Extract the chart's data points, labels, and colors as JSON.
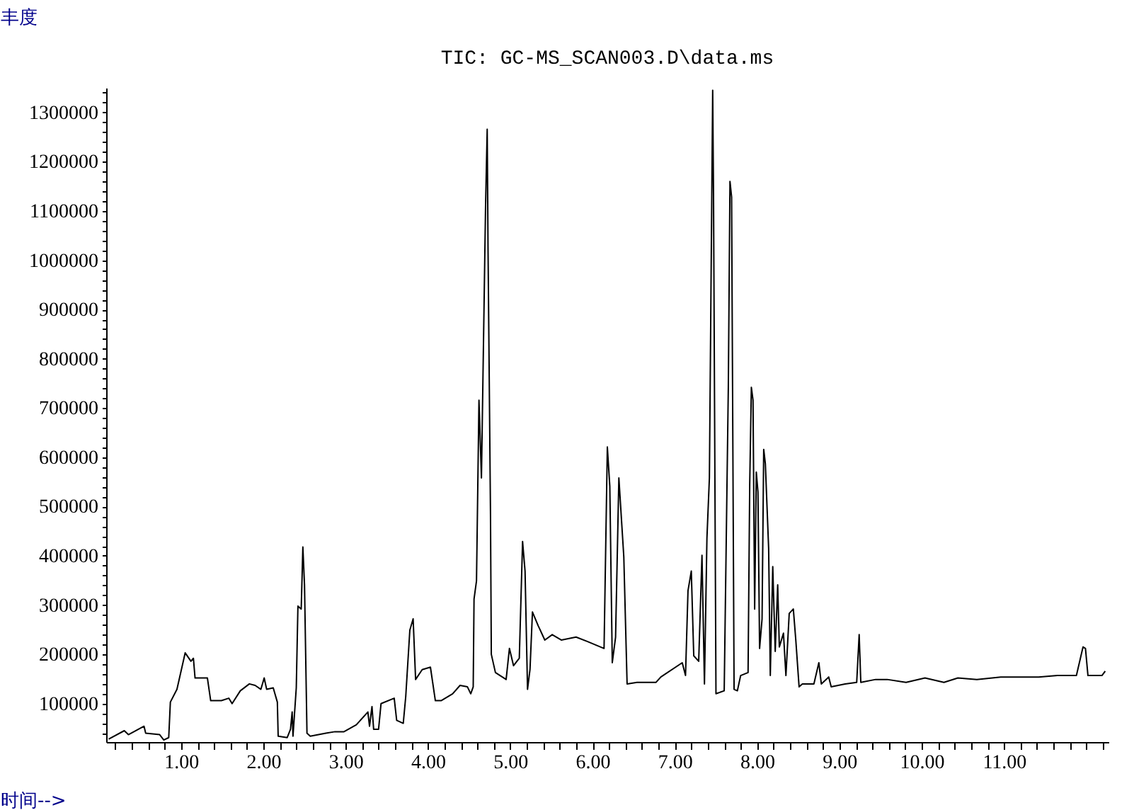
{
  "chart_data": {
    "type": "line",
    "title": "TIC: GC-MS_SCAN003.D\\data.ms",
    "xlabel": "时间-->",
    "ylabel": "丰度",
    "grid": false,
    "marker": "none",
    "line_style": "solid",
    "xlim": [
      0.09,
      12.27
    ],
    "ylim": [
      22000,
      1350000
    ],
    "xticks": [
      {
        "value": 0.2,
        "label": null
      },
      {
        "value": 0.4,
        "label": null
      },
      {
        "value": 0.6,
        "label": null
      },
      {
        "value": 0.8,
        "label": null
      },
      {
        "value": 1,
        "label": "1.00"
      },
      {
        "value": 1.2,
        "label": null
      },
      {
        "value": 1.4,
        "label": null
      },
      {
        "value": 1.6,
        "label": null
      },
      {
        "value": 1.8,
        "label": null
      },
      {
        "value": 2,
        "label": "2.00"
      },
      {
        "value": 2.2,
        "label": null
      },
      {
        "value": 2.4,
        "label": null
      },
      {
        "value": 2.6,
        "label": null
      },
      {
        "value": 2.8,
        "label": null
      },
      {
        "value": 3,
        "label": "3.00"
      },
      {
        "value": 3.2,
        "label": null
      },
      {
        "value": 3.4,
        "label": null
      },
      {
        "value": 3.6,
        "label": null
      },
      {
        "value": 3.8,
        "label": null
      },
      {
        "value": 4,
        "label": "4.00"
      },
      {
        "value": 4.2,
        "label": null
      },
      {
        "value": 4.4,
        "label": null
      },
      {
        "value": 4.6,
        "label": null
      },
      {
        "value": 4.8,
        "label": null
      },
      {
        "value": 5,
        "label": "5.00"
      },
      {
        "value": 5.2,
        "label": null
      },
      {
        "value": 5.4,
        "label": null
      },
      {
        "value": 5.6,
        "label": null
      },
      {
        "value": 5.8,
        "label": null
      },
      {
        "value": 6,
        "label": "6.00"
      },
      {
        "value": 6.2,
        "label": null
      },
      {
        "value": 6.4,
        "label": null
      },
      {
        "value": 6.6,
        "label": null
      },
      {
        "value": 6.8,
        "label": null
      },
      {
        "value": 7,
        "label": "7.00"
      },
      {
        "value": 7.2,
        "label": null
      },
      {
        "value": 7.4,
        "label": null
      },
      {
        "value": 7.6,
        "label": null
      },
      {
        "value": 7.8,
        "label": null
      },
      {
        "value": 8,
        "label": "8.00"
      },
      {
        "value": 8.2,
        "label": null
      },
      {
        "value": 8.4,
        "label": null
      },
      {
        "value": 8.6,
        "label": null
      },
      {
        "value": 8.8,
        "label": null
      },
      {
        "value": 9,
        "label": "9.00"
      },
      {
        "value": 9.2,
        "label": null
      },
      {
        "value": 9.4,
        "label": null
      },
      {
        "value": 9.6,
        "label": null
      },
      {
        "value": 9.8,
        "label": null
      },
      {
        "value": 10,
        "label": "10.00"
      },
      {
        "value": 10.2,
        "label": null
      },
      {
        "value": 10.4,
        "label": null
      },
      {
        "value": 10.6,
        "label": null
      },
      {
        "value": 10.8,
        "label": null
      },
      {
        "value": 11,
        "label": "11.00"
      },
      {
        "value": 11.2,
        "label": null
      },
      {
        "value": 11.4,
        "label": null
      },
      {
        "value": 11.6,
        "label": null
      },
      {
        "value": 11.8,
        "label": null
      },
      {
        "value": 12,
        "label": null
      },
      {
        "value": 12.2,
        "label": null
      }
    ],
    "yticks": [
      {
        "value": 40000,
        "label": null
      },
      {
        "value": 60000,
        "label": null
      },
      {
        "value": 80000,
        "label": null
      },
      100000,
      {
        "value": 120000,
        "label": null
      },
      {
        "value": 140000,
        "label": null
      },
      {
        "value": 160000,
        "label": null
      },
      {
        "value": 180000,
        "label": null
      },
      200000,
      {
        "value": 220000,
        "label": null
      },
      {
        "value": 240000,
        "label": null
      },
      {
        "value": 260000,
        "label": null
      },
      {
        "value": 280000,
        "label": null
      },
      300000,
      {
        "value": 320000,
        "label": null
      },
      {
        "value": 340000,
        "label": null
      },
      {
        "value": 360000,
        "label": null
      },
      {
        "value": 380000,
        "label": null
      },
      400000,
      {
        "value": 420000,
        "label": null
      },
      {
        "value": 440000,
        "label": null
      },
      {
        "value": 460000,
        "label": null
      },
      {
        "value": 480000,
        "label": null
      },
      500000,
      {
        "value": 520000,
        "label": null
      },
      {
        "value": 540000,
        "label": null
      },
      {
        "value": 560000,
        "label": null
      },
      {
        "value": 580000,
        "label": null
      },
      600000,
      {
        "value": 620000,
        "label": null
      },
      {
        "value": 640000,
        "label": null
      },
      {
        "value": 660000,
        "label": null
      },
      {
        "value": 680000,
        "label": null
      },
      700000,
      {
        "value": 720000,
        "label": null
      },
      {
        "value": 740000,
        "label": null
      },
      {
        "value": 760000,
        "label": null
      },
      {
        "value": 780000,
        "label": null
      },
      800000,
      {
        "value": 820000,
        "label": null
      },
      {
        "value": 840000,
        "label": null
      },
      {
        "value": 860000,
        "label": null
      },
      {
        "value": 880000,
        "label": null
      },
      900000,
      {
        "value": 920000,
        "label": null
      },
      {
        "value": 940000,
        "label": null
      },
      {
        "value": 960000,
        "label": null
      },
      {
        "value": 980000,
        "label": null
      },
      1000000,
      {
        "value": 1020000,
        "label": null
      },
      {
        "value": 1040000,
        "label": null
      },
      {
        "value": 1060000,
        "label": null
      },
      {
        "value": 1080000,
        "label": null
      },
      1100000,
      {
        "value": 1120000,
        "label": null
      },
      {
        "value": 1140000,
        "label": null
      },
      {
        "value": 1160000,
        "label": null
      },
      {
        "value": 1180000,
        "label": null
      },
      1200000,
      {
        "value": 1220000,
        "label": null
      },
      {
        "value": 1240000,
        "label": null
      },
      {
        "value": 1260000,
        "label": null
      },
      {
        "value": 1280000,
        "label": null
      },
      1300000,
      {
        "value": 1320000,
        "label": null
      },
      {
        "value": 1340000,
        "label": null
      }
    ],
    "series": [
      {
        "color": "#000000",
        "x": [
          0.12,
          0.31,
          0.36,
          0.55,
          0.57,
          0.74,
          0.79,
          0.85,
          0.87,
          0.95,
          1.05,
          1.12,
          1.15,
          1.17,
          1.32,
          1.36,
          1.49,
          1.58,
          1.62,
          1.72,
          1.83,
          1.9,
          1.97,
          2.01,
          2.04,
          2.12,
          2.17,
          2.18,
          2.29,
          2.33,
          2.35,
          2.36,
          2.4,
          2.42,
          2.46,
          2.48,
          2.5,
          2.53,
          2.57,
          2.76,
          2.87,
          2.98,
          3.13,
          3.27,
          3.29,
          3.32,
          3.34,
          3.4,
          3.43,
          3.59,
          3.62,
          3.7,
          3.73,
          3.78,
          3.82,
          3.85,
          3.93,
          4.03,
          4.09,
          4.16,
          4.3,
          4.39,
          4.48,
          4.52,
          4.55,
          4.56,
          4.59,
          4.62,
          4.65,
          4.7,
          4.72,
          4.73,
          4.76,
          4.77,
          4.82,
          4.95,
          4.99,
          5.04,
          5.11,
          5.15,
          5.18,
          5.21,
          5.24,
          5.27,
          5.34,
          5.42,
          5.51,
          5.62,
          5.8,
          5.94,
          6.14,
          6.18,
          6.21,
          6.24,
          6.28,
          6.32,
          6.38,
          6.42,
          6.54,
          6.77,
          6.83,
          7.09,
          7.13,
          7.16,
          7.2,
          7.23,
          7.29,
          7.33,
          7.36,
          7.39,
          7.42,
          7.46,
          7.47,
          7.5,
          7.6,
          7.65,
          7.67,
          7.69,
          7.72,
          7.76,
          7.8,
          7.89,
          7.91,
          7.93,
          7.95,
          7.97,
          7.99,
          8.01,
          8.03,
          8.06,
          8.08,
          8.1,
          8.14,
          8.16,
          8.19,
          8.22,
          8.25,
          8.27,
          8.32,
          8.35,
          8.39,
          8.44,
          8.47,
          8.51,
          8.55,
          8.69,
          8.75,
          8.78,
          8.87,
          8.9,
          9.07,
          9.21,
          9.24,
          9.26,
          9.44,
          9.58,
          9.81,
          10.04,
          10.27,
          10.44,
          10.67,
          10.96,
          11.19,
          11.42,
          11.65,
          11.88,
          11.96,
          11.99,
          12.02,
          12.1,
          12.19,
          12.23
        ],
        "values": [
          28000,
          45000,
          37000,
          54000,
          40000,
          37000,
          26000,
          31000,
          103000,
          129000,
          203000,
          186000,
          192000,
          152000,
          152000,
          106000,
          106000,
          111000,
          100000,
          126000,
          140000,
          137000,
          129000,
          152000,
          129000,
          132000,
          103000,
          34000,
          31000,
          48000,
          83000,
          34000,
          132000,
          298000,
          292000,
          418000,
          341000,
          40000,
          34000,
          40000,
          43000,
          43000,
          57000,
          83000,
          54000,
          94000,
          48000,
          48000,
          100000,
          111000,
          66000,
          60000,
          114000,
          249000,
          272000,
          149000,
          169000,
          174000,
          106000,
          106000,
          120000,
          137000,
          134000,
          120000,
          134000,
          312000,
          349000,
          716000,
          558000,
          1108000,
          1266000,
          1028000,
          484000,
          200000,
          163000,
          149000,
          212000,
          177000,
          192000,
          429000,
          369000,
          129000,
          169000,
          286000,
          258000,
          229000,
          240000,
          229000,
          235000,
          226000,
          212000,
          621000,
          541000,
          183000,
          235000,
          558000,
          398000,
          140000,
          143000,
          143000,
          154000,
          183000,
          157000,
          329000,
          369000,
          197000,
          186000,
          401000,
          140000,
          435000,
          558000,
          1345000,
          1137000,
          120000,
          126000,
          742000,
          1160000,
          1128000,
          129000,
          126000,
          157000,
          163000,
          544000,
          742000,
          716000,
          292000,
          570000,
          530000,
          212000,
          272000,
          616000,
          587000,
          415000,
          157000,
          378000,
          206000,
          341000,
          215000,
          243000,
          157000,
          283000,
          292000,
          229000,
          134000,
          140000,
          140000,
          183000,
          140000,
          154000,
          134000,
          140000,
          143000,
          240000,
          143000,
          149000,
          149000,
          143000,
          152000,
          143000,
          152000,
          149000,
          154000,
          154000,
          154000,
          157000,
          157000,
          215000,
          212000,
          157000,
          157000,
          157000,
          166000
        ]
      }
    ]
  }
}
